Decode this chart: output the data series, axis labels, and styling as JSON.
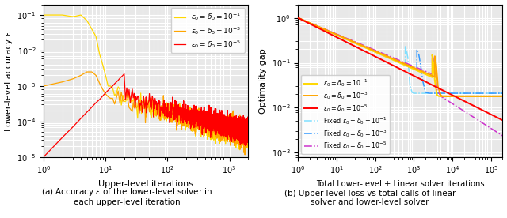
{
  "left_plot": {
    "xlabel": "Upper-level iterations",
    "ylabel": "Lower-level accuracy ε",
    "xlim": [
      1,
      2000
    ],
    "ylim": [
      1e-05,
      0.2
    ],
    "colors": [
      "#FFD700",
      "#FFA500",
      "#FF0000"
    ],
    "labels": [
      "$\\varepsilon_0 = \\delta_0 = 10^{-1}$",
      "$\\varepsilon_0 = \\delta_0 = 10^{-3}$",
      "$\\varepsilon_0 = \\delta_0 = 10^{-5}$"
    ]
  },
  "right_plot": {
    "xlabel": "Total Lower-level + Linear solver iterations",
    "ylabel": "Optimality gap",
    "xlim": [
      1,
      200000.0
    ],
    "ylim": [
      0.0008,
      2
    ],
    "colors_adaptive": [
      "#FFD700",
      "#FFA500",
      "#FF0000"
    ],
    "colors_fixed": [
      "#7FDFFF",
      "#3399FF",
      "#CC33CC"
    ],
    "labels_adaptive": [
      "$\\varepsilon_0 = \\delta_0 = 10^{-1}$",
      "$\\varepsilon_0 = \\delta_0 = 10^{-3}$",
      "$\\varepsilon_0 = \\delta_0 = 10^{-5}$"
    ],
    "labels_fixed": [
      "Fixed $\\varepsilon_0 = \\delta_0 = 10^{-1}$",
      "Fixed $\\varepsilon_0 = \\delta_0 = 10^{-3}$",
      "Fixed $\\varepsilon_0 = \\delta_0 = 10^{-5}$"
    ]
  },
  "background": "#e8e8e8",
  "grid_color": "white"
}
